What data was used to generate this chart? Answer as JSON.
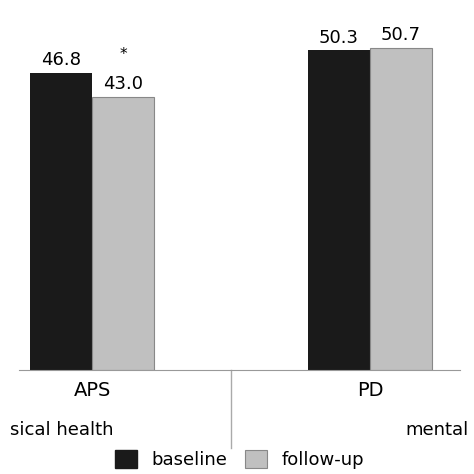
{
  "groups": [
    "APS",
    "PD"
  ],
  "baseline_values": [
    46.8,
    50.3
  ],
  "followup_values": [
    43.0,
    50.7
  ],
  "bar_color_baseline": "#1a1a1a",
  "bar_color_followup": "#c0c0c0",
  "bar_edge_color": "#888888",
  "ylim": [
    0,
    56
  ],
  "bar_width": 0.38,
  "group_positions": [
    1.0,
    2.7
  ],
  "section_labels": [
    "sical health",
    "mental"
  ],
  "value_label_fontsize": 13,
  "group_label_fontsize": 14,
  "section_label_fontsize": 13,
  "legend_fontsize": 13,
  "significance_star": "*",
  "significance_group": 0,
  "background_color": "#ffffff",
  "divider_color": "#aaaaaa"
}
